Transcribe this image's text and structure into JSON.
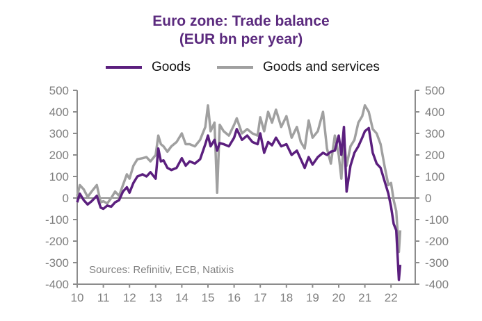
{
  "chart_data": {
    "type": "line",
    "title": "Euro zone: Trade balance",
    "subtitle": "(EUR bn per year)",
    "xlabel": "",
    "ylabel": "",
    "source": "Sources: Refinitiv, ECB, Natixis",
    "xlim": [
      2010,
      2022.9
    ],
    "ylim": [
      -400,
      500
    ],
    "x_ticks": [
      "10",
      "11",
      "12",
      "13",
      "14",
      "15",
      "16",
      "17",
      "18",
      "19",
      "20",
      "21",
      "22"
    ],
    "y_ticks": [
      500,
      400,
      300,
      200,
      100,
      0,
      -100,
      -200,
      -300,
      -400
    ],
    "legend": {
      "placement": "top",
      "entries": [
        "Goods",
        "Goods and services"
      ]
    },
    "colors": {
      "goods": "#5b1f7e",
      "goods_services": "#a0a0a0",
      "axis": "#8c8c8c"
    },
    "series": [
      {
        "name": "Goods",
        "x": [
          2010.0,
          2010.1,
          2010.25,
          2010.4,
          2010.55,
          2010.75,
          2010.9,
          2011.0,
          2011.15,
          2011.3,
          2011.45,
          2011.6,
          2011.75,
          2011.9,
          2012.0,
          2012.15,
          2012.3,
          2012.5,
          2012.65,
          2012.8,
          2013.0,
          2013.1,
          2013.2,
          2013.3,
          2013.45,
          2013.6,
          2013.8,
          2014.0,
          2014.15,
          2014.3,
          2014.5,
          2014.7,
          2014.9,
          2015.0,
          2015.1,
          2015.25,
          2015.35,
          2015.45,
          2015.6,
          2015.8,
          2016.0,
          2016.1,
          2016.3,
          2016.5,
          2016.7,
          2016.9,
          2017.0,
          2017.15,
          2017.3,
          2017.45,
          2017.6,
          2017.8,
          2018.0,
          2018.2,
          2018.4,
          2018.55,
          2018.7,
          2018.85,
          2019.0,
          2019.2,
          2019.4,
          2019.55,
          2019.7,
          2019.85,
          2020.0,
          2020.1,
          2020.2,
          2020.3,
          2020.45,
          2020.6,
          2020.75,
          2020.9,
          2021.0,
          2021.15,
          2021.3,
          2021.45,
          2021.6,
          2021.75,
          2021.9,
          2022.0,
          2022.1,
          2022.2,
          2022.3,
          2022.35
        ],
        "values": [
          -20,
          20,
          -10,
          -30,
          -15,
          10,
          -45,
          -50,
          -35,
          -40,
          -20,
          -10,
          30,
          50,
          25,
          70,
          100,
          110,
          100,
          120,
          90,
          230,
          170,
          175,
          140,
          130,
          140,
          185,
          150,
          170,
          160,
          180,
          250,
          290,
          240,
          270,
          220,
          255,
          250,
          240,
          280,
          320,
          270,
          290,
          260,
          250,
          300,
          210,
          260,
          245,
          280,
          240,
          250,
          200,
          220,
          180,
          140,
          190,
          155,
          190,
          210,
          200,
          215,
          220,
          290,
          200,
          330,
          30,
          150,
          210,
          240,
          280,
          310,
          325,
          210,
          160,
          140,
          80,
          20,
          -40,
          -120,
          -150,
          -380,
          -310
        ]
      },
      {
        "name": "Goods and services",
        "x": [
          2010.0,
          2010.1,
          2010.25,
          2010.4,
          2010.55,
          2010.75,
          2010.9,
          2011.0,
          2011.15,
          2011.3,
          2011.45,
          2011.6,
          2011.75,
          2011.9,
          2012.0,
          2012.15,
          2012.3,
          2012.5,
          2012.65,
          2012.8,
          2013.0,
          2013.1,
          2013.2,
          2013.3,
          2013.45,
          2013.6,
          2013.8,
          2014.0,
          2014.15,
          2014.3,
          2014.5,
          2014.7,
          2014.9,
          2015.0,
          2015.1,
          2015.25,
          2015.35,
          2015.45,
          2015.6,
          2015.8,
          2016.0,
          2016.1,
          2016.3,
          2016.5,
          2016.7,
          2016.9,
          2017.0,
          2017.15,
          2017.3,
          2017.45,
          2017.6,
          2017.8,
          2018.0,
          2018.2,
          2018.4,
          2018.55,
          2018.7,
          2018.85,
          2019.0,
          2019.2,
          2019.4,
          2019.55,
          2019.7,
          2019.85,
          2020.0,
          2020.1,
          2020.2,
          2020.3,
          2020.45,
          2020.6,
          2020.75,
          2020.9,
          2021.0,
          2021.15,
          2021.3,
          2021.45,
          2021.6,
          2021.75,
          2021.9,
          2022.0,
          2022.1,
          2022.2,
          2022.3,
          2022.35
        ],
        "values": [
          10,
          60,
          40,
          5,
          30,
          60,
          -20,
          -15,
          -25,
          0,
          30,
          10,
          60,
          110,
          90,
          150,
          180,
          185,
          190,
          170,
          200,
          290,
          250,
          240,
          215,
          240,
          260,
          300,
          250,
          250,
          240,
          270,
          330,
          430,
          310,
          350,
          25,
          340,
          310,
          290,
          340,
          370,
          300,
          320,
          300,
          290,
          375,
          310,
          400,
          350,
          410,
          330,
          380,
          280,
          330,
          260,
          230,
          360,
          280,
          310,
          400,
          230,
          160,
          290,
          200,
          90,
          280,
          150,
          240,
          270,
          350,
          380,
          430,
          400,
          320,
          300,
          250,
          150,
          60,
          70,
          -10,
          -60,
          -250,
          -150
        ]
      }
    ]
  }
}
